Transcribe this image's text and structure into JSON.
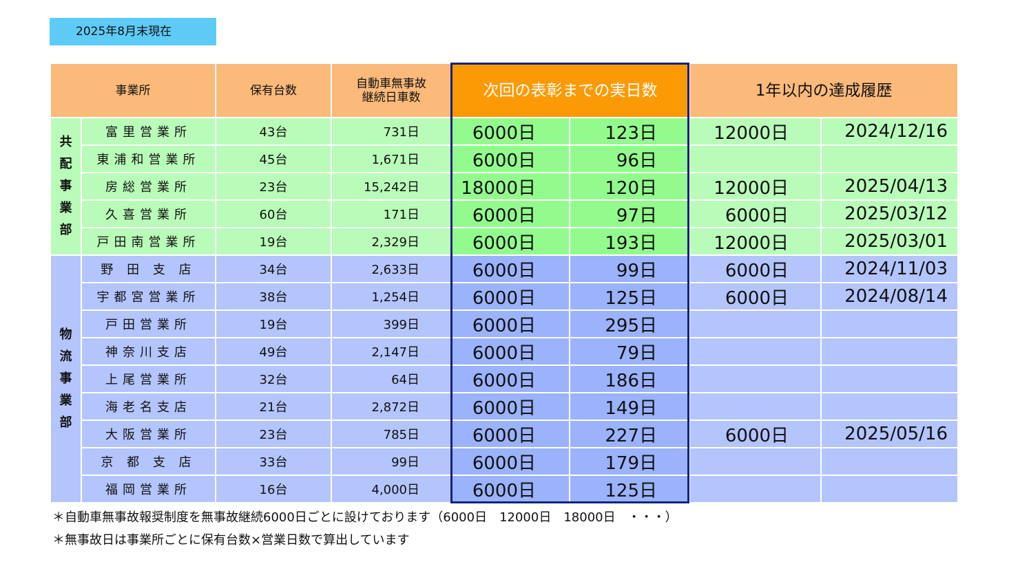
{
  "as_of": "2025年8月末現在",
  "headers": {
    "office": "事業所",
    "units": "保有台数",
    "accident_free_line1": "自動車無事故",
    "accident_free_line2": "継続日車数",
    "next_award": "次回の表彰までの実日数",
    "achievements": "1年以内の達成履歴"
  },
  "groups": [
    {
      "department_chars": [
        "共",
        "配",
        "事",
        "業",
        "部"
      ],
      "rows": [
        {
          "office": "富里営業所",
          "units": "43台",
          "days": "731日",
          "next_milestone": "6000日",
          "next_remaining": "123日",
          "achieved_milestone": "12000日",
          "achieved_date": "2024/12/16"
        },
        {
          "office": "東浦和営業所",
          "units": "45台",
          "days": "1,671日",
          "next_milestone": "6000日",
          "next_remaining": "96日",
          "achieved_milestone": "",
          "achieved_date": ""
        },
        {
          "office": "房総営業所",
          "units": "23台",
          "days": "15,242日",
          "next_milestone": "18000日",
          "next_remaining": "120日",
          "achieved_milestone": "12000日",
          "achieved_date": "2025/04/13"
        },
        {
          "office": "久喜営業所",
          "units": "60台",
          "days": "171日",
          "next_milestone": "6000日",
          "next_remaining": "97日",
          "achieved_milestone": "6000日",
          "achieved_date": "2025/03/12"
        },
        {
          "office": "戸田南営業所",
          "units": "19台",
          "days": "2,329日",
          "next_milestone": "6000日",
          "next_remaining": "193日",
          "achieved_milestone": "12000日",
          "achieved_date": "2025/03/01"
        }
      ]
    },
    {
      "department_chars": [
        "物",
        "流",
        "事",
        "業",
        "部"
      ],
      "rows": [
        {
          "office": "野 田 支 店",
          "units": "34台",
          "days": "2,633日",
          "next_milestone": "6000日",
          "next_remaining": "99日",
          "achieved_milestone": "6000日",
          "achieved_date": "2024/11/03"
        },
        {
          "office": "宇都宮営業所",
          "units": "38台",
          "days": "1,254日",
          "next_milestone": "6000日",
          "next_remaining": "125日",
          "achieved_milestone": "6000日",
          "achieved_date": "2024/08/14"
        },
        {
          "office": "戸田営業所",
          "units": "19台",
          "days": "399日",
          "next_milestone": "6000日",
          "next_remaining": "295日",
          "achieved_milestone": "",
          "achieved_date": ""
        },
        {
          "office": "神奈川支店",
          "units": "49台",
          "days": "2,147日",
          "next_milestone": "6000日",
          "next_remaining": "79日",
          "achieved_milestone": "",
          "achieved_date": ""
        },
        {
          "office": "上尾営業所",
          "units": "32台",
          "days": "64日",
          "next_milestone": "6000日",
          "next_remaining": "186日",
          "achieved_milestone": "",
          "achieved_date": ""
        },
        {
          "office": "海老名支店",
          "units": "21台",
          "days": "2,872日",
          "next_milestone": "6000日",
          "next_remaining": "149日",
          "achieved_milestone": "",
          "achieved_date": ""
        },
        {
          "office": "大阪営業所",
          "units": "23台",
          "days": "785日",
          "next_milestone": "6000日",
          "next_remaining": "227日",
          "achieved_milestone": "6000日",
          "achieved_date": "2025/05/16"
        },
        {
          "office": "京 都 支 店",
          "units": "33台",
          "days": "99日",
          "next_milestone": "6000日",
          "next_remaining": "179日",
          "achieved_milestone": "",
          "achieved_date": ""
        },
        {
          "office": "福岡営業所",
          "units": "16台",
          "days": "4,000日",
          "next_milestone": "6000日",
          "next_remaining": "125日",
          "achieved_milestone": "",
          "achieved_date": ""
        }
      ]
    }
  ],
  "notes": [
    "＊自動車無事故報奨制度を無事故継続6000日ごとに設けております（6000日　12000日　18000日　・・・）",
    "＊無事故日は事業所ごとに保有台数×営業日数で算出しています"
  ],
  "colors": {
    "date_badge": "#5ecbf7",
    "header": "#fbb97a",
    "next_header": "#fc9a05",
    "group1_row": "#b9fcb9",
    "group1_highlight": "#93fb8d",
    "group2_row": "#b4c4fc",
    "group2_highlight": "#9bb2fc",
    "frame": "#13237e"
  }
}
